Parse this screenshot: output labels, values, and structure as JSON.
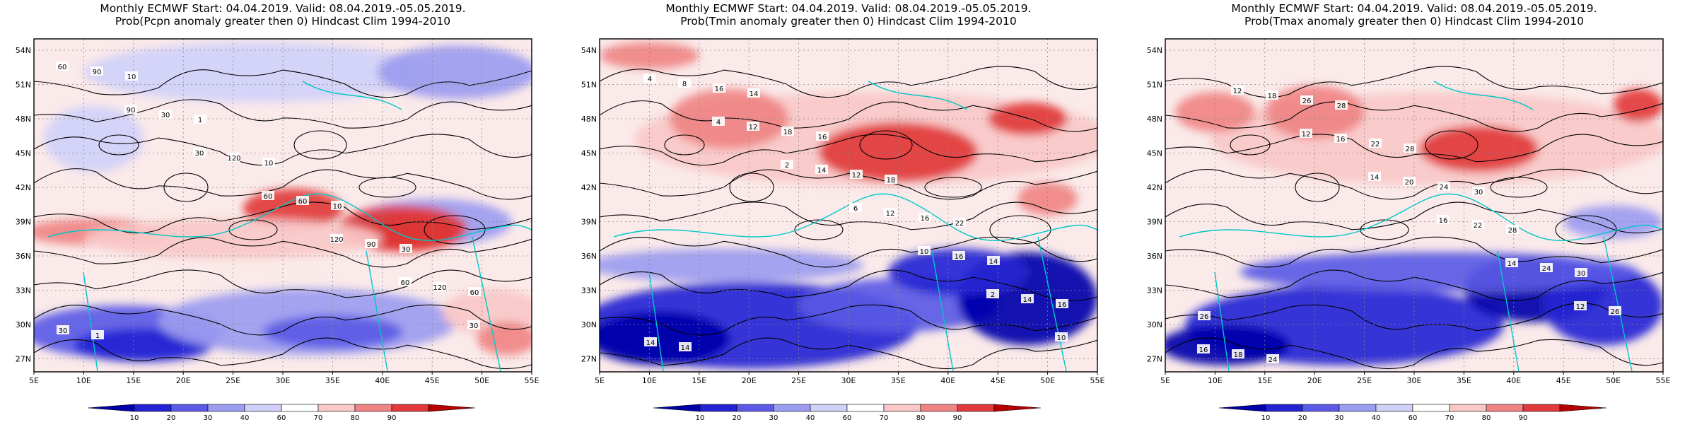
{
  "panels": [
    {
      "title1": "Monthly ECMWF Start: 04.04.2019. Valid: 08.04.2019.-05.05.2019.",
      "title2": "Prob(Pcpn anomaly greater then 0) Hindcast Clim 1994-2010",
      "variable": "Pcpn",
      "contour_labels": [
        "60",
        "90",
        "30",
        "60",
        "120",
        "60",
        "30",
        "90",
        "30",
        "120",
        "60",
        "90",
        "120",
        "30",
        "10",
        "1",
        "10",
        "10",
        "30",
        "60",
        "1"
      ]
    },
    {
      "title1": "Monthly ECMWF Start: 04.04.2019. Valid: 08.04.2019.-05.05.2019.",
      "title2": "Prob(Tmin anomaly greater then 0) Hindcast Clim 1994-2010",
      "variable": "Tmin",
      "contour_labels": [
        "4",
        "4",
        "2",
        "6",
        "10",
        "2",
        "10",
        "8",
        "12",
        "14",
        "12",
        "16",
        "14",
        "14",
        "16",
        "18",
        "12",
        "16",
        "14",
        "16",
        "14",
        "14",
        "16",
        "18",
        "22"
      ]
    },
    {
      "title1": "Monthly ECMWF Start: 04.04.2019. Valid: 08.04.2019.-05.05.2019.",
      "title2": "Prob(Tmax anomaly greater then 0) Hindcast Clim 1994-2010",
      "variable": "Tmax",
      "contour_labels": [
        "12",
        "12",
        "14",
        "16",
        "14",
        "12",
        "16",
        "18",
        "16",
        "20",
        "22",
        "24",
        "26",
        "18",
        "26",
        "22",
        "24",
        "28",
        "30",
        "26",
        "24",
        "28",
        "28",
        "30"
      ]
    }
  ],
  "lat_labels": [
    "54N",
    "51N",
    "48N",
    "45N",
    "42N",
    "39N",
    "36N",
    "33N",
    "30N",
    "27N"
  ],
  "lon_labels": [
    "5E",
    "10E",
    "15E",
    "20E",
    "25E",
    "30E",
    "35E",
    "40E",
    "45E",
    "50E",
    "55E"
  ],
  "colorbar": {
    "labels": [
      "10",
      "20",
      "30",
      "40",
      "60",
      "70",
      "80",
      "90"
    ],
    "colors": [
      "#0000aa",
      "#2323d4",
      "#5a5ae6",
      "#9c9cf0",
      "#d0d0f8",
      "#ffffff",
      "#f8c8c8",
      "#f08484",
      "#e23a3a",
      "#b60000"
    ]
  },
  "palette": {
    "coastline": "#00c8c8",
    "contour": "#000000"
  }
}
